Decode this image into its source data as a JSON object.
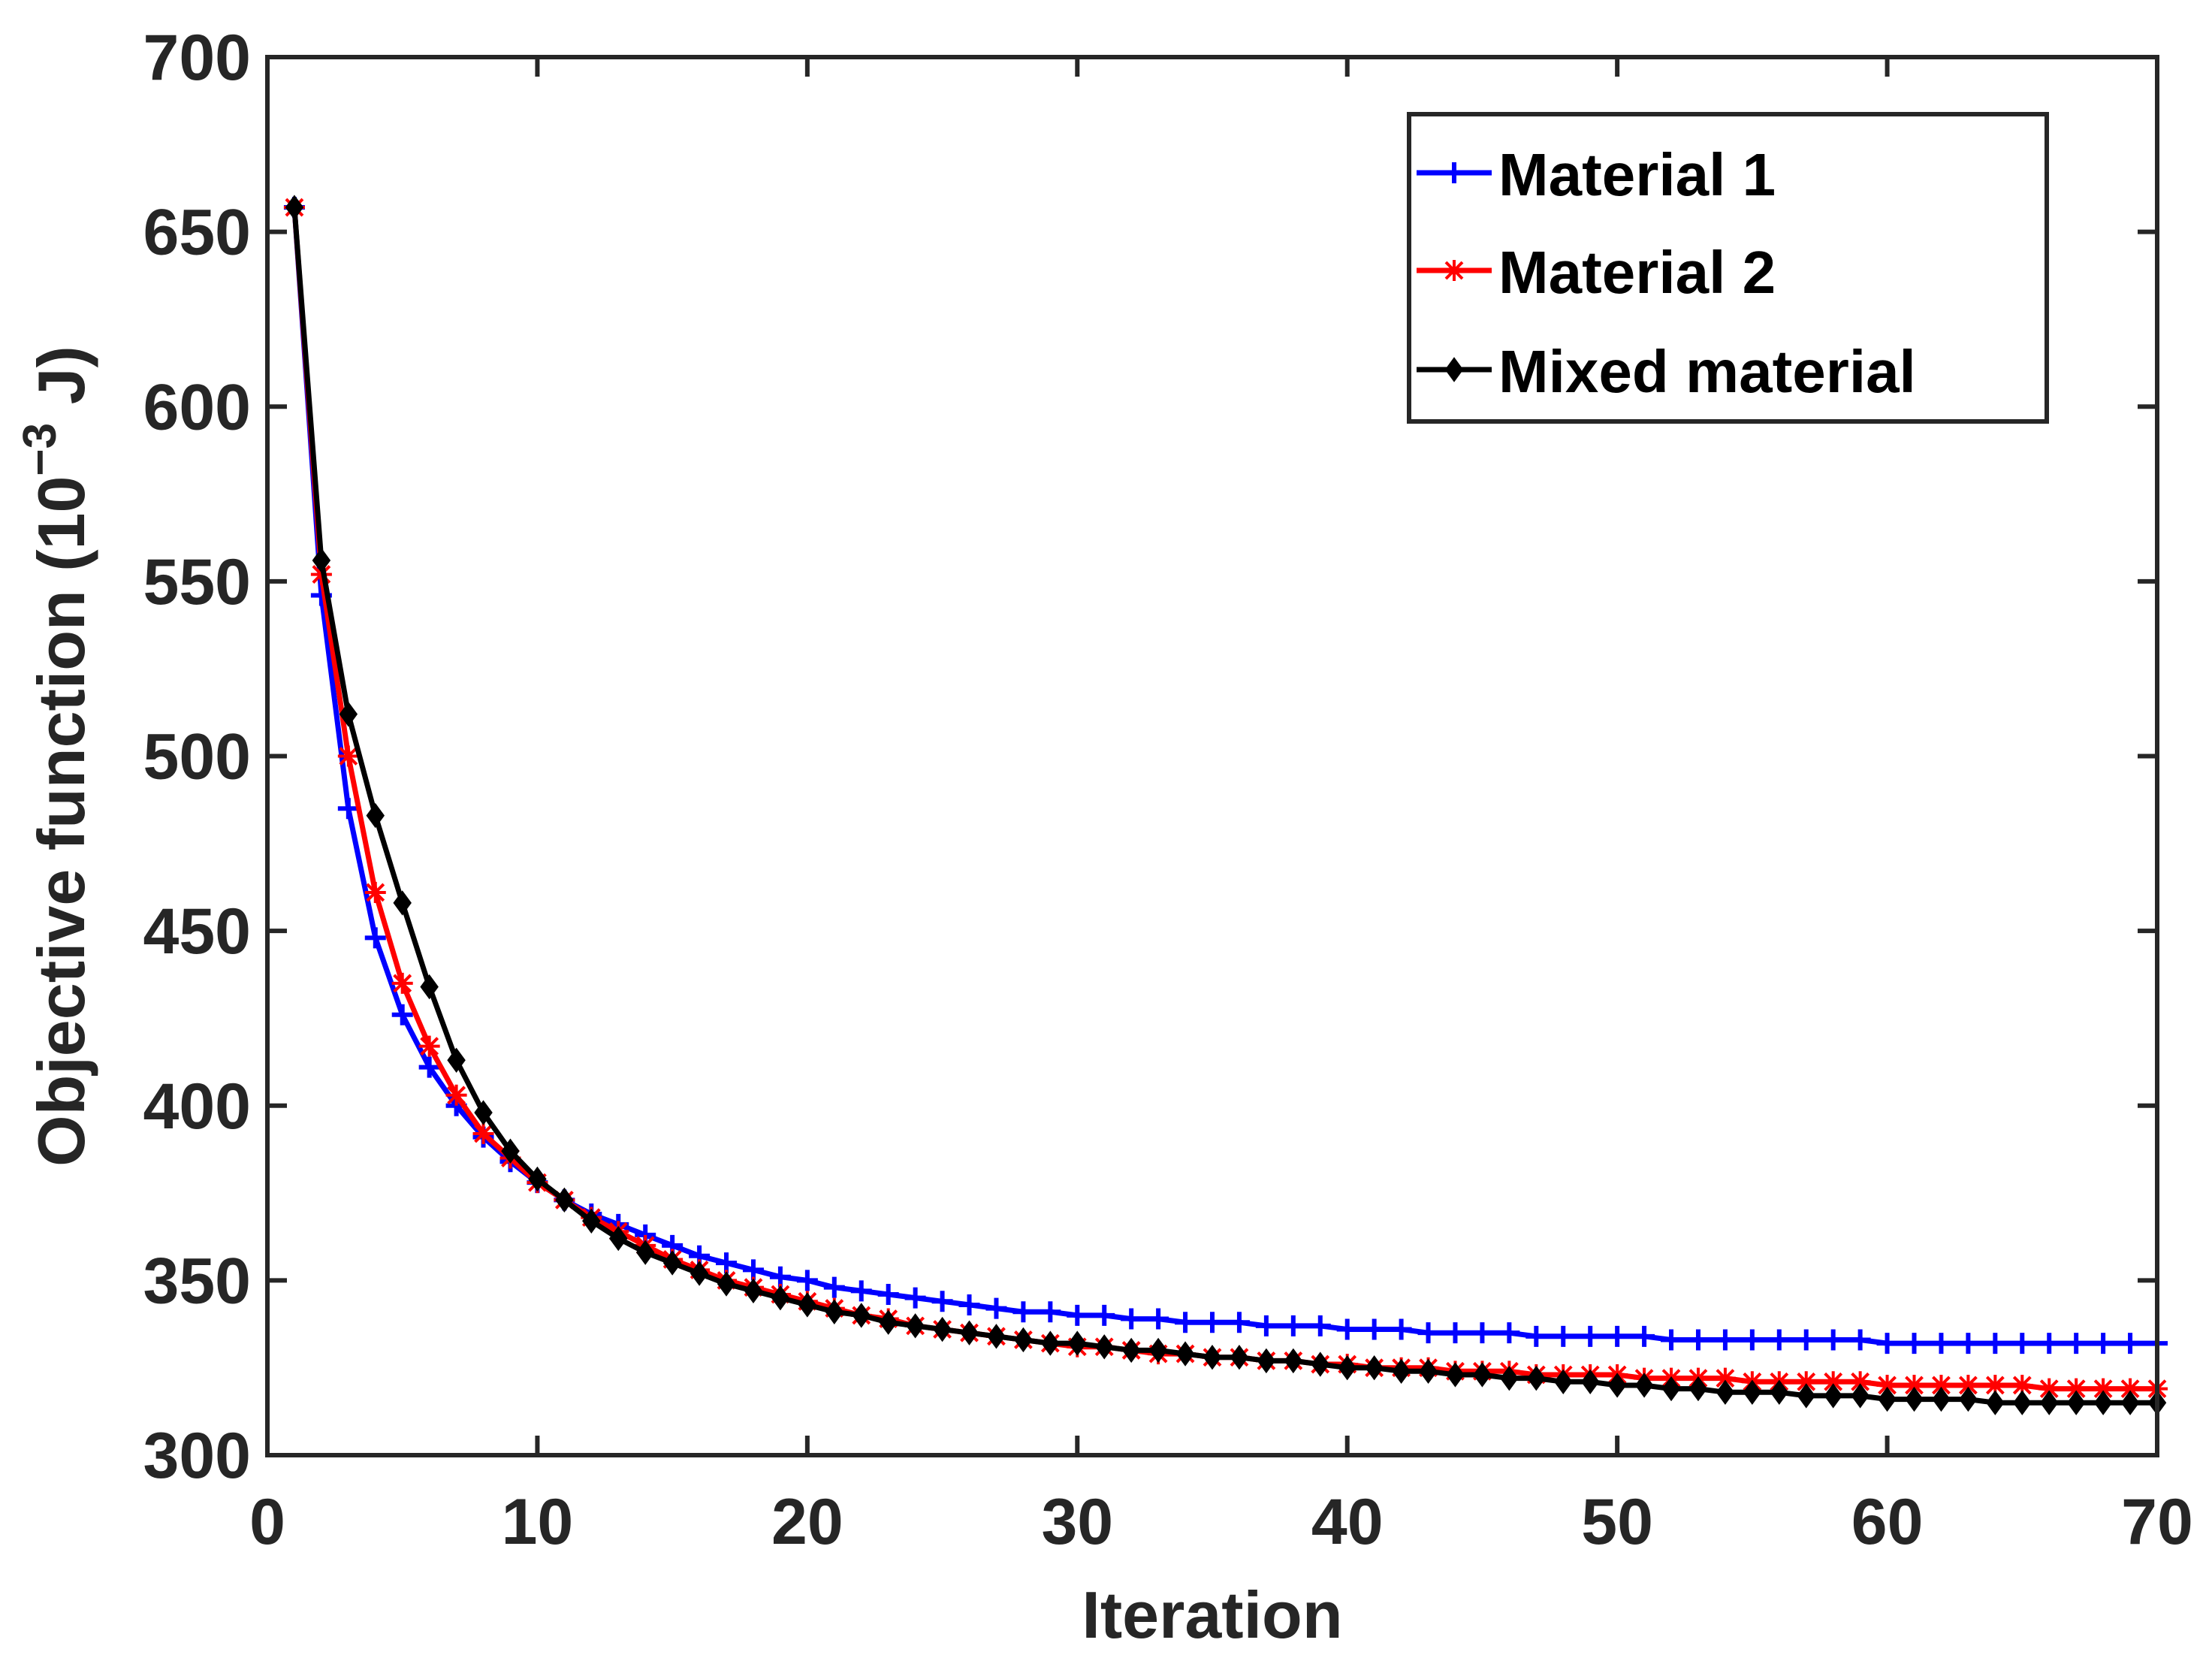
{
  "chart_data": {
    "type": "line",
    "title": "",
    "xlabel": "Iteration",
    "ylabel_main": "Objective function (10",
    "ylabel_sup": "−3",
    "ylabel_tail": " J)",
    "xlim": [
      0,
      70
    ],
    "ylim": [
      300,
      700
    ],
    "x_ticks": [
      0,
      10,
      20,
      30,
      40,
      50,
      60,
      70
    ],
    "y_ticks": [
      300,
      350,
      400,
      450,
      500,
      550,
      600,
      650,
      700
    ],
    "x_tick_labels": [
      "0",
      "10",
      "20",
      "30",
      "40",
      "50",
      "60",
      "70"
    ],
    "y_tick_labels": [
      "300",
      "350",
      "400",
      "450",
      "500",
      "550",
      "600",
      "650",
      "700"
    ],
    "grid": false,
    "legend_position": "top-right",
    "x": [
      1,
      2,
      3,
      4,
      5,
      6,
      7,
      8,
      9,
      10,
      11,
      12,
      13,
      14,
      15,
      16,
      17,
      18,
      19,
      20,
      21,
      22,
      23,
      24,
      25,
      26,
      27,
      28,
      29,
      30,
      31,
      32,
      33,
      34,
      35,
      36,
      37,
      38,
      39,
      40,
      41,
      42,
      43,
      44,
      45,
      46,
      47,
      48,
      49,
      50,
      51,
      52,
      53,
      54,
      55,
      56,
      57,
      58,
      59,
      60,
      61,
      62,
      63,
      64,
      65,
      66,
      67,
      68,
      69,
      70
    ],
    "series": [
      {
        "name": "Material 1",
        "color": "#0000ff",
        "marker": "plus",
        "values": [
          657,
          546,
          485,
          448,
          426,
          411,
          400,
          391,
          384,
          378,
          373,
          369,
          366,
          363,
          360,
          357,
          355,
          353,
          351,
          350,
          348,
          347,
          346,
          345,
          344,
          343,
          342,
          341,
          341,
          340,
          340,
          339,
          339,
          338,
          338,
          338,
          337,
          337,
          337,
          336,
          336,
          336,
          335,
          335,
          335,
          335,
          334,
          334,
          334,
          334,
          334,
          333,
          333,
          333,
          333,
          333,
          333,
          333,
          333,
          332,
          332,
          332,
          332,
          332,
          332,
          332,
          332,
          332,
          332,
          332
        ]
      },
      {
        "name": "Material 2",
        "color": "#ff0000",
        "marker": "star",
        "values": [
          657,
          552,
          500,
          461,
          435,
          417,
          403,
          392,
          385,
          378,
          373,
          368,
          364,
          360,
          356,
          353,
          350,
          348,
          346,
          344,
          342,
          340,
          339,
          337,
          336,
          335,
          334,
          333,
          332,
          331,
          331,
          330,
          329,
          329,
          328,
          328,
          327,
          327,
          326,
          326,
          325,
          325,
          325,
          324,
          324,
          324,
          323,
          323,
          323,
          323,
          322,
          322,
          322,
          322,
          321,
          321,
          321,
          321,
          321,
          320,
          320,
          320,
          320,
          320,
          320,
          319,
          319,
          319,
          319,
          319
        ]
      },
      {
        "name": "Mixed material",
        "color": "#000000",
        "marker": "diamond",
        "values": [
          657,
          556,
          512,
          483,
          458,
          434,
          413,
          398,
          387,
          379,
          373,
          367,
          362,
          358,
          355,
          352,
          349,
          347,
          345,
          343,
          341,
          340,
          338,
          337,
          336,
          335,
          334,
          333,
          332,
          332,
          331,
          330,
          330,
          329,
          328,
          328,
          327,
          327,
          326,
          325,
          325,
          324,
          324,
          323,
          323,
          322,
          322,
          321,
          321,
          320,
          320,
          319,
          319,
          318,
          318,
          318,
          317,
          317,
          317,
          316,
          316,
          316,
          316,
          315,
          315,
          315,
          315,
          315,
          315,
          315
        ]
      }
    ]
  }
}
